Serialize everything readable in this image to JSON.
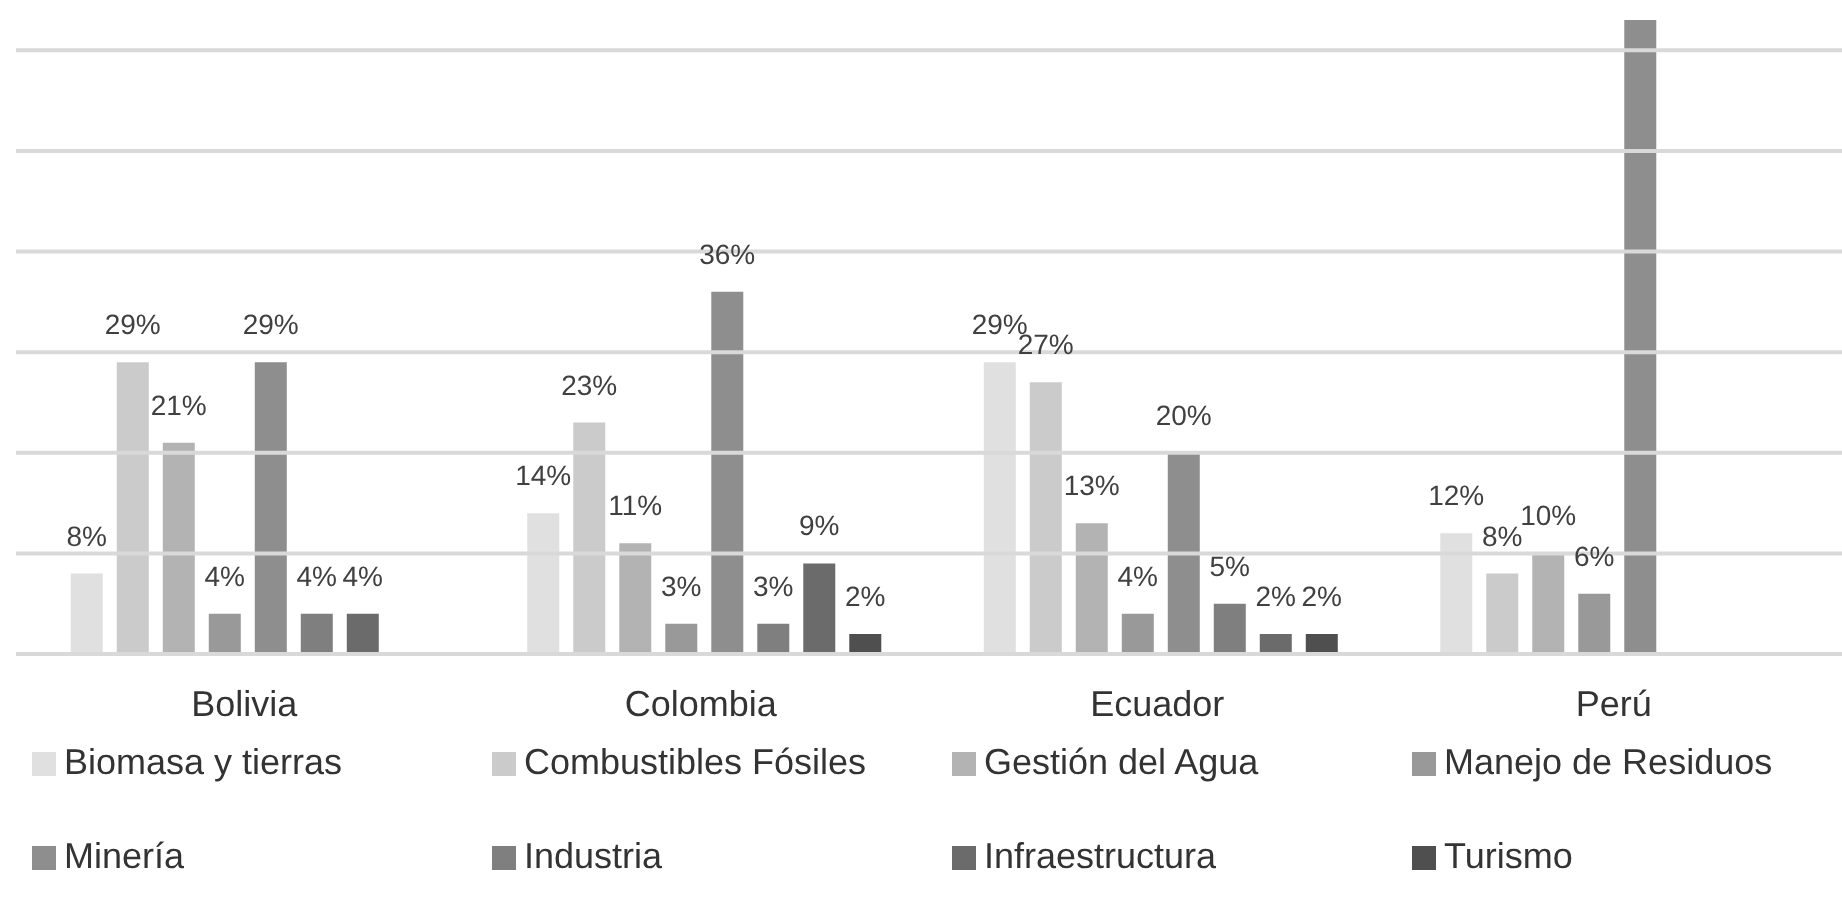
{
  "chart_data": {
    "type": "bar",
    "categories": [
      "Bolivia",
      "Colombia",
      "Ecuador",
      "Perú"
    ],
    "series": [
      {
        "name": "Biomasa y tierras",
        "color": "#e0e0e0",
        "values": [
          8,
          14,
          29,
          12
        ],
        "value_labels": [
          "8%",
          "14%",
          "29%",
          "12%"
        ]
      },
      {
        "name": "Combustibles Fósiles",
        "color": "#cbcbcb",
        "values": [
          29,
          23,
          27,
          8
        ],
        "value_labels": [
          "29%",
          "23%",
          "27%",
          "8%"
        ]
      },
      {
        "name": "Gestión del Agua",
        "color": "#b3b3b3",
        "values": [
          21,
          11,
          13,
          10
        ],
        "value_labels": [
          "21%",
          "11%",
          "13%",
          "10%"
        ]
      },
      {
        "name": "Manejo de Residuos",
        "color": "#999999",
        "values": [
          4,
          3,
          4,
          6
        ],
        "value_labels": [
          "4%",
          "3%",
          "4%",
          "6%"
        ]
      },
      {
        "name": "Minería",
        "color": "#8e8e8e",
        "values": [
          29,
          36,
          20,
          63
        ],
        "value_labels": [
          "29%",
          "36%",
          "20%",
          null
        ]
      },
      {
        "name": "Industria",
        "color": "#7f7f7f",
        "values": [
          4,
          3,
          5,
          null
        ],
        "value_labels": [
          "4%",
          "3%",
          "5%",
          null
        ]
      },
      {
        "name": "Infraestructura",
        "color": "#6b6b6b",
        "values": [
          4,
          9,
          2,
          null
        ],
        "value_labels": [
          "4%",
          "9%",
          "2%",
          null
        ]
      },
      {
        "name": "Turismo",
        "color": "#4f4f4f",
        "values": [
          null,
          2,
          2,
          null
        ],
        "value_labels": [
          null,
          "2%",
          "2%",
          null
        ]
      }
    ],
    "ylim": [
      0,
      65
    ],
    "yticks": [
      {
        "value": 0,
        "label": null
      },
      {
        "value": 10,
        "label": null
      },
      {
        "value": 20,
        "label": null
      },
      {
        "value": 30,
        "label": null
      },
      {
        "value": 40,
        "label": null
      },
      {
        "value": 50,
        "label": null
      },
      {
        "value": 60,
        "label": null
      }
    ],
    "grid": "y",
    "tick_labels": "x",
    "legend": "bottom"
  }
}
